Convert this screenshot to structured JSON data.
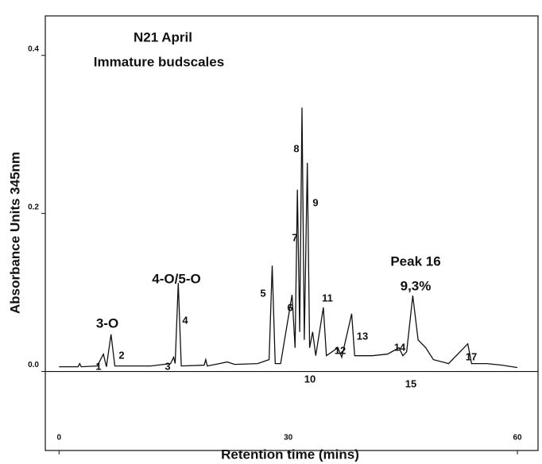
{
  "chart_data": {
    "type": "line",
    "title": "N21 April",
    "subtitle": "Immature budscales",
    "x_label": "Retention time (mins)",
    "y_label": "Absorbance Units 345nm",
    "xlim": [
      -1.8,
      62.7
    ],
    "ylim": [
      -0.1,
      0.45
    ],
    "xticks": [
      0,
      30,
      60
    ],
    "yticks": [
      {
        "value": 0,
        "label": "0.0"
      },
      {
        "value": 0.2,
        "label": "0.2"
      },
      {
        "value": 0.4,
        "label": "0.4"
      }
    ],
    "color": "#111111",
    "x": [
      0,
      2.5,
      2.7,
      2.9,
      5,
      5.8,
      6.2,
      6.8,
      7.3,
      12,
      14.6,
      15.0,
      15.2,
      15.6,
      16,
      19,
      19.2,
      19.4,
      21,
      22,
      23,
      26,
      27.5,
      27.9,
      28.3,
      29,
      30.5,
      30.9,
      31.2,
      31.5,
      31.8,
      32.1,
      32.5,
      32.8,
      33.2,
      33.6,
      34.6,
      35,
      36.5,
      37,
      38.3,
      38.7,
      41,
      43,
      44.5,
      45,
      45.5,
      46.3,
      47,
      48,
      49,
      51,
      53.5,
      54,
      56,
      58,
      60
    ],
    "values": [
      0.006,
      0.006,
      0.01,
      0.006,
      0.007,
      0.022,
      0.006,
      0.047,
      0.007,
      0.007,
      0.01,
      0.018,
      0.01,
      0.112,
      0.007,
      0.008,
      0.015,
      0.007,
      0.01,
      0.012,
      0.009,
      0.01,
      0.015,
      0.134,
      0.01,
      0.01,
      0.097,
      0.03,
      0.23,
      0.05,
      0.334,
      0.04,
      0.264,
      0.03,
      0.05,
      0.02,
      0.081,
      0.02,
      0.03,
      0.018,
      0.073,
      0.02,
      0.02,
      0.022,
      0.03,
      0.02,
      0.025,
      0.096,
      0.04,
      0.03,
      0.015,
      0.01,
      0.035,
      0.01,
      0.01,
      0.008,
      0.005
    ],
    "group_labels": [
      "3-O",
      "4-O/5-O",
      "Peak 16",
      "9,3%"
    ],
    "peak_labels": [
      "1",
      "2",
      "3",
      "4",
      "5",
      "6",
      "7",
      "8",
      "9",
      "10",
      "11",
      "12",
      "13",
      "14",
      "15",
      "17"
    ]
  }
}
